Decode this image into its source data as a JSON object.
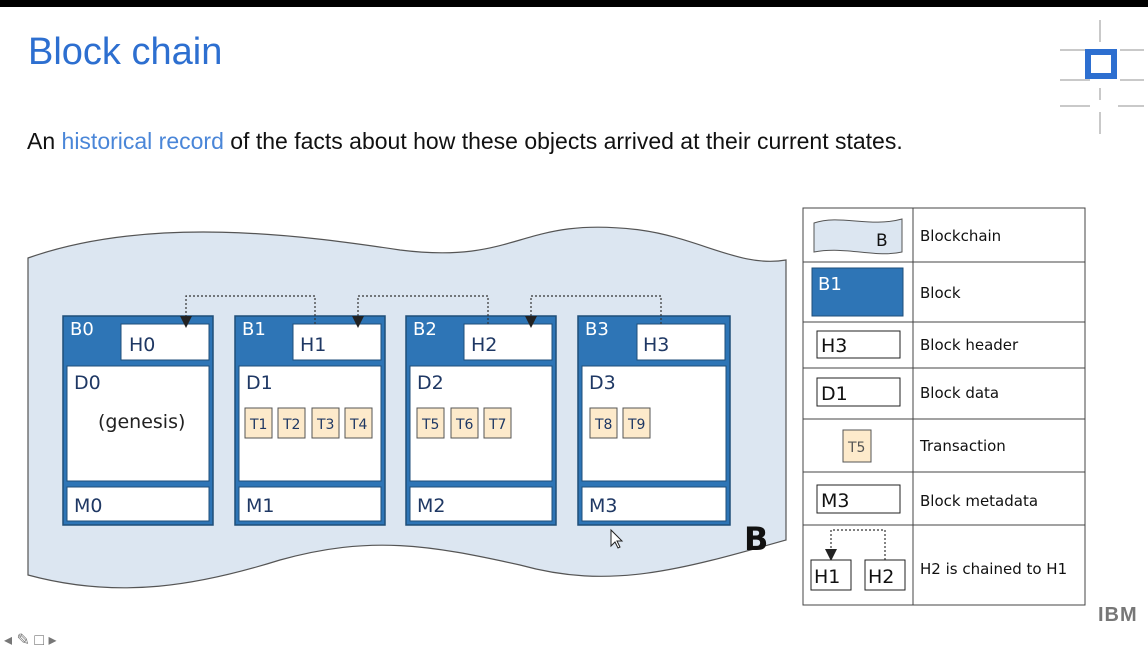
{
  "slide": {
    "title": "Block chain",
    "subtitle_before": "An ",
    "subtitle_highlight": "historical record",
    "subtitle_after": " of the facts about how these objects arrived at their current states."
  },
  "diagram": {
    "chain_label": "B",
    "blocks": [
      {
        "label": "B0",
        "header": "H0",
        "data": "D0",
        "data_note": "(genesis)",
        "transactions": [],
        "metadata": "M0"
      },
      {
        "label": "B1",
        "header": "H1",
        "data": "D1",
        "data_note": "",
        "transactions": [
          "T1",
          "T2",
          "T3",
          "T4"
        ],
        "metadata": "M1"
      },
      {
        "label": "B2",
        "header": "H2",
        "data": "D2",
        "data_note": "",
        "transactions": [
          "T5",
          "T6",
          "T7"
        ],
        "metadata": "M2"
      },
      {
        "label": "B3",
        "header": "H3",
        "data": "D3",
        "data_note": "",
        "transactions": [
          "T8",
          "T9"
        ],
        "metadata": "M3"
      }
    ]
  },
  "legend": {
    "rows": [
      {
        "sample": "B",
        "desc": "Blockchain"
      },
      {
        "sample": "B1",
        "desc": "Block"
      },
      {
        "sample": "H3",
        "desc": "Block header"
      },
      {
        "sample": "D1",
        "desc": "Block data"
      },
      {
        "sample": "T5",
        "desc": "Transaction"
      },
      {
        "sample": "M3",
        "desc": "Block metadata"
      },
      {
        "sample_left": "H1",
        "sample_right": "H2",
        "desc": "H2 is chained to H1"
      }
    ]
  },
  "footer": {
    "brand": "IBM"
  },
  "colors": {
    "title": "#2d6fd0",
    "block_fill": "#2e75b6",
    "block_border": "#1f4e79",
    "chain_fill": "#dce6f1",
    "transaction_fill": "#fdeacb",
    "text_dark": "#1f3864"
  }
}
